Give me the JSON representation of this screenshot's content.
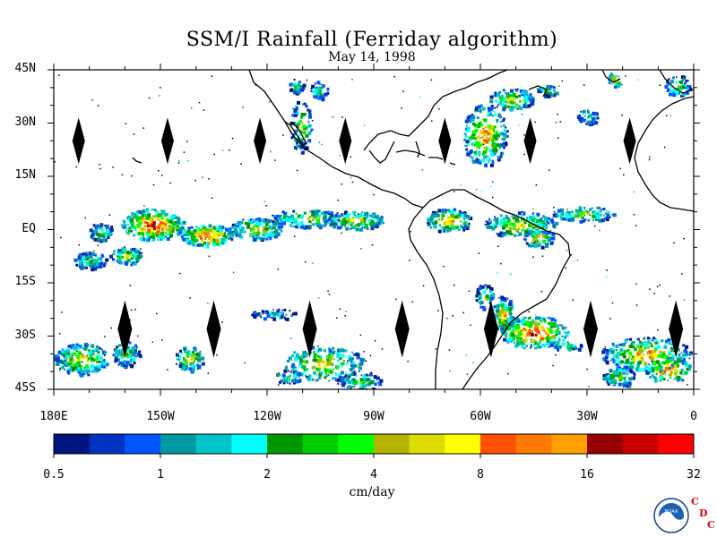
{
  "title": "SSM/I Rainfall (Ferriday algorithm)",
  "date": "May 14, 1998",
  "lat_labels": [
    "45N",
    "30N",
    "15N",
    "EQ",
    "15S",
    "30S",
    "45S"
  ],
  "lon_labels": [
    "180E",
    "150W",
    "120W",
    "90W",
    "60W",
    "30W",
    "0"
  ],
  "colorbar": {
    "colors": [
      "#001580",
      "#0034c0",
      "#0055ff",
      "#00999f",
      "#00c4c8",
      "#00ffff",
      "#009600",
      "#00cc00",
      "#00ff00",
      "#b4b400",
      "#dcdc00",
      "#ffff00",
      "#ff5000",
      "#ff7a00",
      "#ffa000",
      "#960000",
      "#c80000",
      "#ff0000"
    ],
    "labels": [
      "0.5",
      "1",
      "2",
      "4",
      "8",
      "16",
      "32"
    ]
  },
  "unit": "cm/day",
  "logo": {
    "noaa_text": "NOAA",
    "cdc": [
      "C",
      "D",
      "C"
    ]
  },
  "chart_data": {
    "type": "heatmap",
    "title": "SSM/I Rainfall (Ferriday algorithm)",
    "subtitle": "May 14, 1998",
    "xlabel": "",
    "ylabel": "",
    "x_range": [
      -180,
      0
    ],
    "y_range": [
      -45,
      45
    ],
    "x_ticks": [
      -180,
      -150,
      -120,
      -90,
      -60,
      -30,
      0
    ],
    "y_ticks": [
      45,
      30,
      15,
      0,
      -15,
      -30,
      -45
    ],
    "color_scale_units": "cm/day",
    "color_scale_ticks": [
      0.5,
      1,
      2,
      4,
      8,
      16,
      32
    ],
    "swath_gaps_lon": [
      -173,
      -148,
      -122,
      -98,
      -70,
      -46,
      -18,
      -160,
      -135,
      -108,
      -82,
      -57,
      -29,
      -5
    ]
  }
}
